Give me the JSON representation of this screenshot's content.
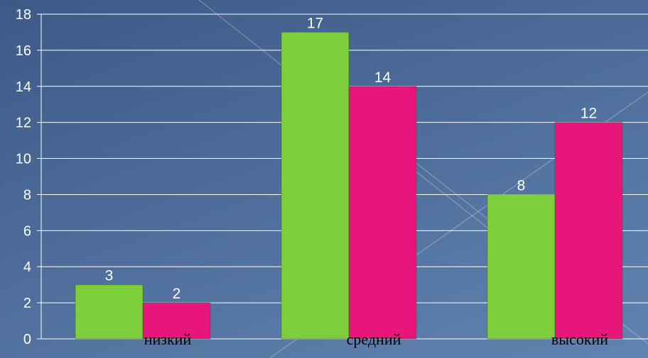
{
  "chart_data": {
    "type": "bar",
    "title": "",
    "xlabel": "",
    "ylabel": "",
    "categories": [
      "низкий",
      "средний",
      "высокий"
    ],
    "series": [
      {
        "values": [
          3,
          17,
          8
        ],
        "color": "#7ccf3a"
      },
      {
        "values": [
          2,
          14,
          12
        ],
        "color": "#e8157a"
      }
    ],
    "ylim": [
      0,
      18
    ],
    "yticks": [
      "0",
      "2",
      "4",
      "6",
      "8",
      "10",
      "12",
      "14",
      "16",
      "18"
    ],
    "grid": true,
    "legend": "none",
    "data_labels": true
  },
  "colors": {
    "background": "#4a6896",
    "grid": "#ffffff",
    "axis": "#ffffff",
    "label_text": "#ffffff",
    "category_text": "#000000"
  }
}
